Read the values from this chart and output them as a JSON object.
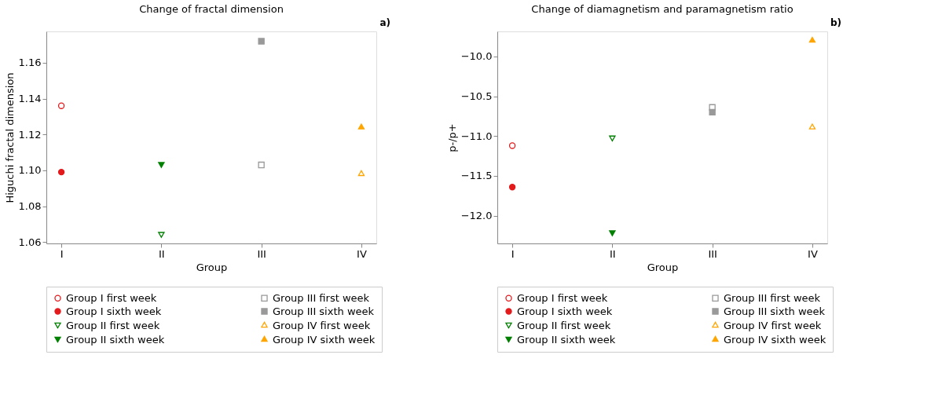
{
  "chart_data": [
    {
      "type": "scatter",
      "title": "Change of fractal dimension",
      "xlabel": "Group",
      "ylabel": "Higuchi fractal dimension",
      "annotations": [
        "a)"
      ],
      "categories": [
        "I",
        "II",
        "III",
        "IV"
      ],
      "ylim": [
        1.0592,
        1.1775
      ],
      "yticks": [
        1.06,
        1.08,
        {
          "value": 1.1,
          "label": "1.10"
        },
        1.12,
        1.14,
        1.16
      ],
      "grid": false,
      "legend": "bottom",
      "series": [
        {
          "name": "Group I first week",
          "color": "#e31a1c",
          "marker": "circle",
          "values": [
            1.136,
            null,
            null,
            null
          ]
        },
        {
          "name": "Group I sixth week",
          "color": "#e31a1c",
          "marker": "circle",
          "values": [
            1.099,
            null,
            null,
            null
          ]
        },
        {
          "name": "Group II first week",
          "color": "#008000",
          "marker": "triangle-down",
          "values": [
            null,
            1.064,
            null,
            null
          ]
        },
        {
          "name": "Group II sixth week",
          "color": "#008000",
          "marker": "triangle-down",
          "values": [
            null,
            1.103,
            null,
            null
          ]
        },
        {
          "name": "Group III first week",
          "color": "#999999",
          "marker": "square",
          "values": [
            null,
            null,
            1.103,
            null
          ]
        },
        {
          "name": "Group III sixth week",
          "color": "#999999",
          "marker": "square",
          "values": [
            null,
            null,
            1.172,
            null
          ]
        },
        {
          "name": "Group IV first week",
          "color": "#ffa500",
          "marker": "triangle",
          "values": [
            null,
            null,
            null,
            1.098
          ]
        },
        {
          "name": "Group IV sixth week",
          "color": "#ffa500",
          "marker": "triangle",
          "values": [
            null,
            null,
            null,
            1.124
          ]
        }
      ]
    },
    {
      "type": "scatter",
      "title": "Change of diamagnetism and paramagnetism ratio",
      "xlabel": "Group",
      "ylabel": "p-/p+",
      "annotations": [
        "b)"
      ],
      "categories": [
        "I",
        "II",
        "III",
        "IV"
      ],
      "ylim": [
        -12.348,
        -9.686
      ],
      "yticks": [
        {
          "value": -12,
          "label": "−12.0"
        },
        {
          "value": -11.5,
          "label": "−11.5"
        },
        {
          "value": -11,
          "label": "−11.0"
        },
        {
          "value": -10.5,
          "label": "−10.5"
        },
        {
          "value": -10,
          "label": "−10.0"
        }
      ],
      "grid": false,
      "legend": "bottom",
      "series": [
        {
          "name": "Group I first week",
          "color": "#e31a1c",
          "marker": "circle",
          "values": [
            -11.12,
            null,
            null,
            null
          ]
        },
        {
          "name": "Group I sixth week",
          "color": "#e31a1c",
          "marker": "circle",
          "values": [
            -11.64,
            null,
            null,
            null
          ]
        },
        {
          "name": "Group II first week",
          "color": "#008000",
          "marker": "triangle-down",
          "values": [
            null,
            -11.03,
            null,
            null
          ]
        },
        {
          "name": "Group II sixth week",
          "color": "#008000",
          "marker": "triangle-down",
          "values": [
            null,
            -12.22,
            null,
            null
          ]
        },
        {
          "name": "Group III first week",
          "color": "#999999",
          "marker": "square",
          "values": [
            null,
            null,
            -10.64,
            null
          ]
        },
        {
          "name": "Group III sixth week",
          "color": "#999999",
          "marker": "square",
          "values": [
            null,
            null,
            -10.7,
            null
          ]
        },
        {
          "name": "Group IV first week",
          "color": "#ffa500",
          "marker": "triangle",
          "values": [
            null,
            null,
            null,
            -10.89
          ]
        },
        {
          "name": "Group IV sixth week",
          "color": "#ffa500",
          "marker": "triangle",
          "values": [
            null,
            null,
            null,
            -9.8
          ]
        }
      ]
    }
  ]
}
